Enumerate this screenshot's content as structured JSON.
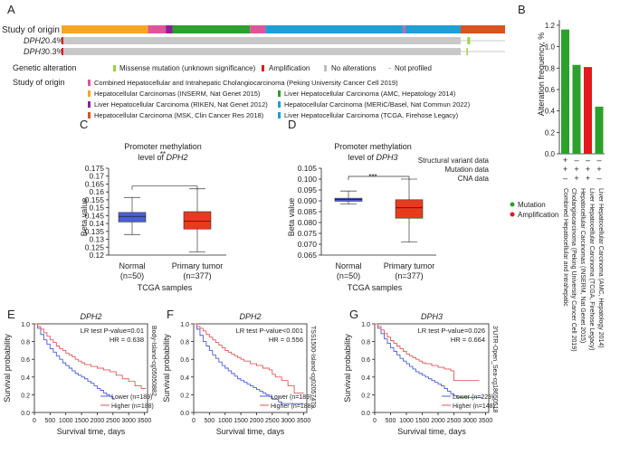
{
  "panels": {
    "A": "A",
    "B": "B",
    "C": "C",
    "D": "D",
    "E": "E",
    "F": "F",
    "G": "G"
  },
  "oncoprint": {
    "study_label": "Study of origin",
    "genes": [
      {
        "name": "DPH2",
        "pct": "0.4%",
        "flag": "*"
      },
      {
        "name": "DPH3",
        "pct": "0.3%",
        "flag": "*"
      }
    ],
    "study_segments": [
      {
        "color": "#f5a623",
        "frac": 0.195
      },
      {
        "color": "#e0559a",
        "frac": 0.04
      },
      {
        "color": "#8e1f9a",
        "frac": 0.015
      },
      {
        "color": "#2ca02c",
        "frac": 0.175
      },
      {
        "color": "#e0559a",
        "frac": 0.035
      },
      {
        "color": "#1fa0d4",
        "frac": 0.31
      },
      {
        "color": "#e0559a",
        "frac": 0.005
      },
      {
        "color": "#1fa0d4",
        "frac": 0.125
      },
      {
        "color": "#d9531e",
        "frac": 0.1
      }
    ],
    "alterations_dph2": [
      0.915,
      0.918
    ],
    "alterations_dph3": [
      0.913
    ],
    "profiled_frac": 0.9
  },
  "legend_alteration": {
    "title": "Genetic alteration",
    "items": [
      {
        "color": "#9bd13a",
        "label": "Missense mutation (unknown significance)"
      },
      {
        "color": "#e31a1c",
        "label": "Amplification"
      },
      {
        "color": "#bdbdbd",
        "label": "No alterations"
      },
      {
        "color": "#bdbdbd",
        "label": "Not profiled"
      }
    ]
  },
  "legend_study": {
    "title": "Study of origin",
    "items": [
      {
        "color": "#e0559a",
        "label": "Combined Hepatocellular and Intrahepatic Cholangiocarcinoma (Peking University Cancer Cell 2019)"
      },
      {
        "color": "#f5a623",
        "label": "Hepatocellular Carcinomas (INSERM, Nat Genet 2015)"
      },
      {
        "color": "#2ca02c",
        "label": "Liver Hepatocellular Carcinoma (AMC, Hepatology 2014)"
      },
      {
        "color": "#8e1f9a",
        "label": "Liver Hepatocellular Carcinoma (RIKEN, Nat Genet 2012)"
      },
      {
        "color": "#1fa0d4",
        "label": "Hepatocellular Carcinoma (MERiC/Basel, Nat Commun 2022)"
      },
      {
        "color": "#d9531e",
        "label": "Hepatocellular Carcinoma (MSK, Clin Cancer Res 2018)"
      },
      {
        "color": "#1fa0d4",
        "label": "Liver Hepatocellular Carcinoma (TCGA, Firehose Legacy)"
      }
    ]
  },
  "panel_b": {
    "ylabel": "Alteration frequency, %",
    "row_labels": [
      "Structural variant data",
      "Mutation data",
      "CNA data"
    ],
    "symbols": [
      [
        "+",
        "–",
        "–",
        "–"
      ],
      [
        "+",
        "+",
        "+",
        "+"
      ],
      [
        "–",
        "+",
        "+",
        "–"
      ]
    ],
    "legend": [
      {
        "color": "#2ca02c",
        "label": "Mutation"
      },
      {
        "color": "#e31a1c",
        "label": "Amplification"
      }
    ],
    "study_labels": [
      "Combined Hepatocellular and Intrahepatic Cholangiocarcinoma (Peking University Cancer Cell 2019)",
      "Hepatocellular Carcinomas (INSERM, Nat Genet 2015)",
      "Liver Hepatocellular Carcinoma (TCGA, Firehose Legacy)",
      "Liver Hepatocellular Carcinoma (AMC, Hepatology 2014)"
    ],
    "study_label_lines": [
      [
        "Combined Hepatocellular and Intrahepatic",
        "Cholangiocarcinoma (Peking University Cancer Cell 2019)"
      ],
      [
        "Hepatocellular Carcinomas (INSERM, Nat Genet 2015)"
      ],
      [
        "Liver Hepatocellular Carcinoma (TCGA, Firehose Legacy)"
      ],
      [
        "Liver Hepatocellular Carcinoma (AMC, Hepatology 2014)"
      ]
    ]
  },
  "boxes": {
    "C": {
      "title1": "Promoter methylation",
      "title2": "level of ",
      "gene": "DPH2",
      "sig": "**"
    },
    "D": {
      "title1": "Promoter methylation",
      "title2": "level of ",
      "gene": "DPH3",
      "sig": "***"
    }
  },
  "km": {
    "E": {
      "title": "DPH2",
      "stat1": "LR test P-value=0.01",
      "stat2": "HR = 0.638",
      "probe": "Body-Island-cg05050882",
      "lower": "Lower (n=189)",
      "higher": "Higher (n=188)"
    },
    "F": {
      "title": "DPH2",
      "stat1": "LR test P-value<0.001",
      "stat2": "HR = 0.556",
      "probe": "TSS1500-Island-cg02057479",
      "lower": "Lower (n=189)",
      "higher": "Higher (n=188)"
    },
    "G": {
      "title": "DPH3",
      "stat1": "LR test P-value=0.026",
      "stat2": "HR = 0.664",
      "probe": "3'UTR-Open_Sea-cg18650518",
      "lower": "Lower (n=229)",
      "higher": "Higher (n=148)"
    }
  },
  "chart_data": [
    {
      "type": "bar",
      "panel": "B",
      "ylabel": "Alteration frequency, %",
      "ylim": [
        0,
        1.25
      ],
      "yticks": [
        0,
        0.2,
        0.4,
        0.6,
        0.8,
        1.0,
        1.2
      ],
      "categories": [
        "Combined Hepatocellular and Intrahepatic Cholangiocarcinoma (Peking University Cancer Cell 2019)",
        "Hepatocellular Carcinomas (INSERM, Nat Genet 2015)",
        "Liver Hepatocellular Carcinoma (TCGA, Firehose Legacy)",
        "Liver Hepatocellular Carcinoma (AMC, Hepatology 2014)"
      ],
      "series": [
        {
          "name": "Mutation",
          "color": "#2ca02c",
          "values": [
            1.16,
            0.83,
            0,
            0.44
          ]
        },
        {
          "name": "Amplification",
          "color": "#e31a1c",
          "values": [
            0,
            0,
            0.81,
            0
          ]
        }
      ]
    },
    {
      "type": "box",
      "panel": "C",
      "ylabel": "Beta value",
      "xlabel": "TCGA samples",
      "ylim": [
        0.12,
        0.175
      ],
      "yticks": [
        0.12,
        0.125,
        0.13,
        0.135,
        0.14,
        0.145,
        0.15,
        0.155,
        0.16,
        0.165,
        0.17,
        0.175
      ],
      "ytick_labels": [
        "0.12",
        "0.125",
        "0.13",
        "0.135",
        "0.14",
        "0.145",
        "0.15",
        "0.155",
        "0.16",
        "0.165",
        "0.17",
        "0.175"
      ],
      "categories": [
        "Normal",
        "Primary tumor"
      ],
      "counts": [
        "(n=50)",
        "(n=377)"
      ],
      "boxes": [
        {
          "whisker_low": 0.133,
          "q1": 0.141,
          "median": 0.1445,
          "q3": 0.147,
          "whisker_high": 0.1565,
          "color": "#4a5fd6"
        },
        {
          "whisker_low": 0.122,
          "q1": 0.1365,
          "median": 0.1415,
          "q3": 0.1475,
          "whisker_high": 0.162,
          "color": "#e83a1c"
        }
      ],
      "significance": "**"
    },
    {
      "type": "box",
      "panel": "D",
      "ylabel": "Beta value",
      "xlabel": "TCGA samples",
      "ylim": [
        0.065,
        0.105
      ],
      "yticks": [
        0.065,
        0.07,
        0.075,
        0.08,
        0.085,
        0.09,
        0.095,
        0.1,
        0.105
      ],
      "ytick_labels": [
        "0.065",
        "0.070",
        "0.075",
        "0.080",
        "0.085",
        "0.090",
        "0.095",
        "0.100",
        "0.105"
      ],
      "categories": [
        "Normal",
        "Primary tumor"
      ],
      "counts": [
        "(n=50)",
        "(n=377)"
      ],
      "boxes": [
        {
          "whisker_low": 0.0885,
          "q1": 0.0898,
          "median": 0.0906,
          "q3": 0.0912,
          "whisker_high": 0.0945,
          "color": "#4a5fd6"
        },
        {
          "whisker_low": 0.071,
          "q1": 0.082,
          "median": 0.0868,
          "q3": 0.0905,
          "whisker_high": 0.1,
          "color": "#e83a1c"
        }
      ],
      "significance": "***"
    },
    {
      "type": "line",
      "panel": "E",
      "title": "DPH2",
      "xlabel": "Survival time, days",
      "ylabel": "Survival probability",
      "xlim": [
        0,
        3600
      ],
      "ylim": [
        0,
        1
      ],
      "xticks": [
        0,
        500,
        1000,
        1500,
        2000,
        2500,
        3000,
        3500
      ],
      "series": [
        {
          "name": "Lower (n=189)",
          "color": "#4a5fd6",
          "x": [
            0,
            100,
            200,
            300,
            400,
            500,
            600,
            700,
            800,
            900,
            1000,
            1100,
            1200,
            1300,
            1400,
            1500,
            1600,
            1700,
            1800,
            1900,
            2000,
            2100,
            2200,
            2300,
            2400,
            2500,
            2550
          ],
          "y": [
            1,
            0.95,
            0.88,
            0.82,
            0.77,
            0.72,
            0.68,
            0.64,
            0.6,
            0.56,
            0.53,
            0.5,
            0.47,
            0.44,
            0.42,
            0.4,
            0.38,
            0.35,
            0.33,
            0.3,
            0.27,
            0.25,
            0.22,
            0.2,
            0.18,
            0.15,
            0.15
          ]
        },
        {
          "name": "Higher (n=188)",
          "color": "#e05a5a",
          "x": [
            0,
            100,
            200,
            300,
            400,
            500,
            600,
            700,
            800,
            900,
            1000,
            1100,
            1200,
            1300,
            1400,
            1500,
            1600,
            1800,
            2000,
            2200,
            2400,
            2600,
            2800,
            3000,
            3200,
            3400,
            3550
          ],
          "y": [
            1,
            0.97,
            0.94,
            0.9,
            0.86,
            0.82,
            0.79,
            0.75,
            0.72,
            0.7,
            0.67,
            0.65,
            0.63,
            0.6,
            0.58,
            0.56,
            0.54,
            0.52,
            0.5,
            0.48,
            0.46,
            0.42,
            0.38,
            0.35,
            0.3,
            0.27,
            0.27
          ]
        }
      ]
    },
    {
      "type": "line",
      "panel": "F",
      "title": "DPH2",
      "xlabel": "Survival time, days",
      "ylabel": "Survival probability",
      "xlim": [
        0,
        3600
      ],
      "ylim": [
        0,
        1
      ],
      "xticks": [
        0,
        500,
        1000,
        1500,
        2000,
        2500,
        3000,
        3500
      ],
      "series": [
        {
          "name": "Lower (n=189)",
          "color": "#4a5fd6",
          "x": [
            0,
            100,
            200,
            300,
            400,
            500,
            600,
            700,
            800,
            900,
            1000,
            1100,
            1200,
            1300,
            1400,
            1500,
            1600,
            1700,
            1800,
            1900,
            2000,
            2100,
            2200,
            2300,
            2400,
            2500,
            2700,
            2800,
            3000,
            3200,
            3500
          ],
          "y": [
            1,
            0.94,
            0.87,
            0.8,
            0.75,
            0.7,
            0.65,
            0.61,
            0.57,
            0.53,
            0.5,
            0.47,
            0.44,
            0.41,
            0.38,
            0.36,
            0.34,
            0.32,
            0.3,
            0.28,
            0.26,
            0.24,
            0.22,
            0.2,
            0.18,
            0.15,
            0.12,
            0.1,
            0.1,
            0.1,
            0.1
          ]
        },
        {
          "name": "Higher (n=188)",
          "color": "#e05a5a",
          "x": [
            0,
            100,
            200,
            300,
            400,
            500,
            600,
            700,
            800,
            900,
            1000,
            1100,
            1200,
            1300,
            1400,
            1500,
            1600,
            1800,
            2000,
            2200,
            2400,
            2500,
            2600,
            2800,
            3000,
            3200,
            3500
          ],
          "y": [
            1,
            0.97,
            0.95,
            0.92,
            0.88,
            0.85,
            0.82,
            0.79,
            0.76,
            0.73,
            0.7,
            0.68,
            0.66,
            0.64,
            0.62,
            0.6,
            0.58,
            0.55,
            0.53,
            0.5,
            0.48,
            0.43,
            0.4,
            0.36,
            0.3,
            0.22,
            0.22
          ]
        }
      ]
    },
    {
      "type": "line",
      "panel": "G",
      "title": "DPH3",
      "xlabel": "Survival time, days",
      "ylabel": "Survival probability",
      "xlim": [
        0,
        3600
      ],
      "ylim": [
        0,
        1
      ],
      "xticks": [
        0,
        500,
        1000,
        1500,
        2000,
        2500,
        3000,
        3500
      ],
      "series": [
        {
          "name": "Lower (n=229)",
          "color": "#4a5fd6",
          "x": [
            0,
            100,
            200,
            300,
            400,
            500,
            600,
            700,
            800,
            900,
            1000,
            1100,
            1200,
            1300,
            1400,
            1500,
            1600,
            1700,
            1800,
            1900,
            2000,
            2100,
            2200,
            2300,
            2400,
            2500,
            2600,
            2800,
            3000,
            3200,
            3400
          ],
          "y": [
            1,
            0.95,
            0.89,
            0.83,
            0.78,
            0.73,
            0.69,
            0.65,
            0.61,
            0.58,
            0.55,
            0.52,
            0.49,
            0.46,
            0.44,
            0.42,
            0.4,
            0.38,
            0.36,
            0.34,
            0.32,
            0.3,
            0.27,
            0.24,
            0.21,
            0.19,
            0.17,
            0.17,
            0.17,
            0.17,
            0.17
          ]
        },
        {
          "name": "Higher (n=148)",
          "color": "#e05a5a",
          "x": [
            0,
            100,
            200,
            300,
            400,
            500,
            600,
            700,
            800,
            900,
            1000,
            1100,
            1200,
            1300,
            1400,
            1500,
            1600,
            1800,
            2000,
            2200,
            2400,
            2500,
            2600,
            2800,
            3000,
            3200,
            3300
          ],
          "y": [
            1,
            0.97,
            0.93,
            0.89,
            0.85,
            0.81,
            0.78,
            0.75,
            0.72,
            0.69,
            0.66,
            0.64,
            0.62,
            0.6,
            0.58,
            0.56,
            0.55,
            0.53,
            0.51,
            0.49,
            0.47,
            0.36,
            0.36,
            0.36,
            0.36,
            0.36,
            0.36
          ]
        }
      ]
    }
  ]
}
